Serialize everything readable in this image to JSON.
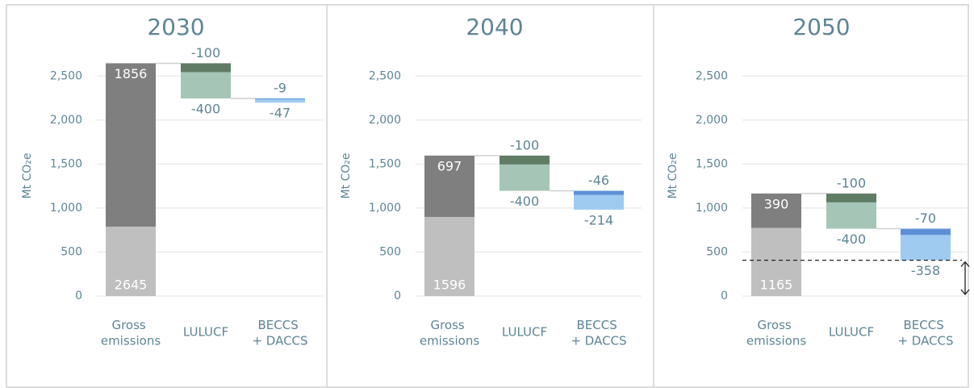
{
  "chart_data": [
    {
      "type": "waterfall",
      "title": "2030",
      "ylabel": "Mt CO₂e",
      "categories": [
        "Gross emissions",
        "LULUCF",
        "BECCS + DACCS"
      ],
      "values": [
        2645,
        -400,
        -47
      ],
      "part_values": [
        1856,
        -100,
        -9
      ],
      "colors": [
        "#bfbfbf",
        "#a5c6b6",
        "#9fcbf1"
      ],
      "part_colors": [
        "#7f7f7f",
        "#617c65",
        "#5d90d6"
      ],
      "ylim": [
        0,
        2750
      ],
      "yticks": [
        0,
        500,
        {
          "value": 1000,
          "label": "1,000"
        },
        {
          "value": 1500,
          "label": "1,500"
        },
        {
          "value": 2000,
          "label": "2,000"
        },
        {
          "value": 2500,
          "label": "2,500"
        }
      ],
      "grid": true,
      "net_marker": false
    },
    {
      "type": "waterfall",
      "title": "2040",
      "ylabel": "Mt CO₂e",
      "categories": [
        "Gross emissions",
        "LULUCF",
        "BECCS + DACCS"
      ],
      "values": [
        1596,
        -400,
        -214
      ],
      "part_values": [
        697,
        -100,
        -46
      ],
      "colors": [
        "#bfbfbf",
        "#a5c6b6",
        "#9fcbf1"
      ],
      "part_colors": [
        "#7f7f7f",
        "#617c65",
        "#5d90d6"
      ],
      "ylim": [
        0,
        2750
      ],
      "yticks": [
        0,
        500,
        {
          "value": 1000,
          "label": "1,000"
        },
        {
          "value": 1500,
          "label": "1,500"
        },
        {
          "value": 2000,
          "label": "2,000"
        },
        {
          "value": 2500,
          "label": "2,500"
        }
      ],
      "grid": true,
      "net_marker": false
    },
    {
      "type": "waterfall",
      "title": "2050",
      "ylabel": "Mt CO₂e",
      "categories": [
        "Gross emissions",
        "LULUCF",
        "BECCS + DACCS"
      ],
      "values": [
        1165,
        -400,
        -358
      ],
      "part_values": [
        390,
        -100,
        -70
      ],
      "colors": [
        "#bfbfbf",
        "#a5c6b6",
        "#9fcbf1"
      ],
      "part_colors": [
        "#7f7f7f",
        "#617c65",
        "#5d90d6"
      ],
      "ylim": [
        0,
        2750
      ],
      "yticks": [
        0,
        500,
        {
          "value": 1000,
          "label": "1,000"
        },
        {
          "value": 1500,
          "label": "1,500"
        },
        {
          "value": 2000,
          "label": "2,000"
        },
        {
          "value": 2500,
          "label": "2,500"
        }
      ],
      "grid": true,
      "net_marker": true
    }
  ]
}
